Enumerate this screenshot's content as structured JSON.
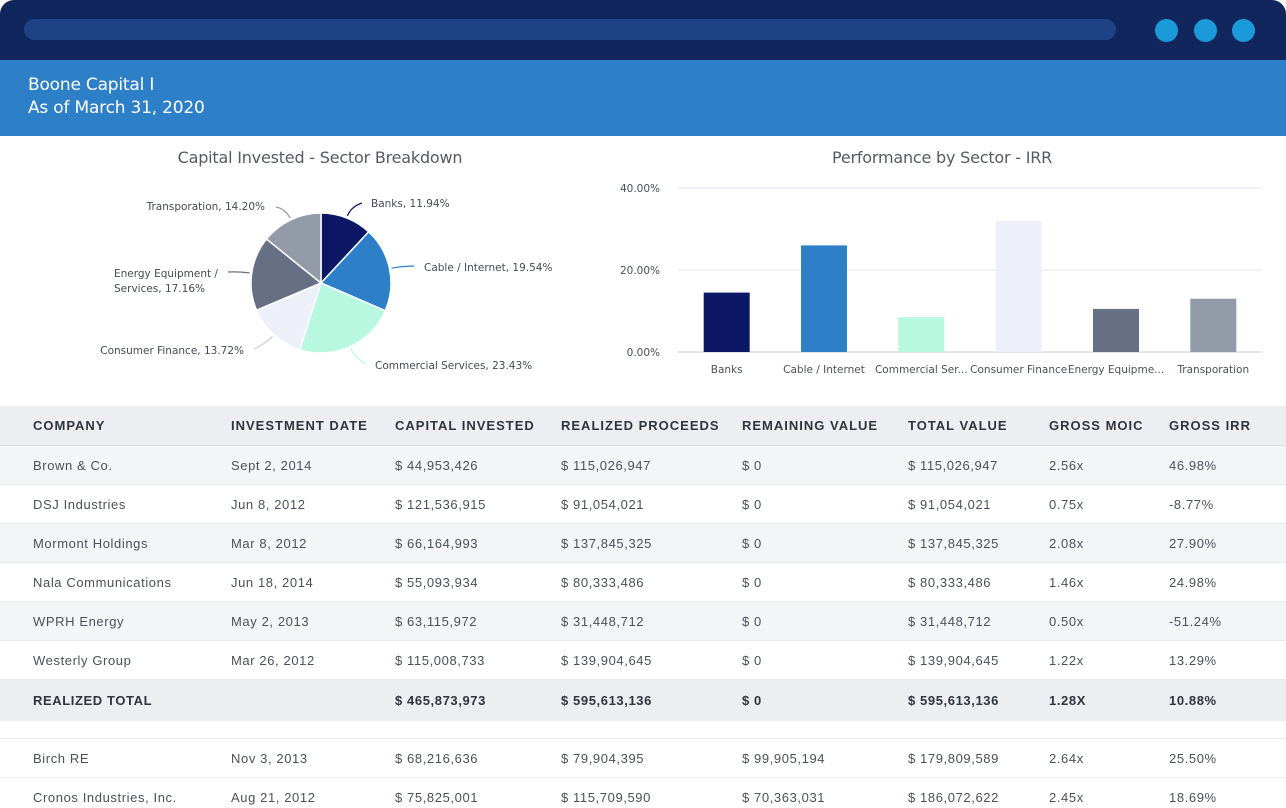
{
  "window": {
    "controls": [
      "dot",
      "dot",
      "dot"
    ]
  },
  "header": {
    "fund_name": "Boone Capital I",
    "as_of": "As of March 31, 2020"
  },
  "charts": {
    "pie_title": "Capital Invested - Sector Breakdown",
    "bar_title": "Performance by Sector - IRR"
  },
  "chart_data": [
    {
      "type": "pie",
      "title": "Capital Invested - Sector Breakdown",
      "slices": [
        {
          "label": "Banks, 11.94%",
          "value": 11.94,
          "color": "#0c1766"
        },
        {
          "label": "Cable / Internet, 19.54%",
          "value": 19.54,
          "color": "#2d7fc7"
        },
        {
          "label": "Commercial Services, 23.43%",
          "value": 23.43,
          "color": "#b8f8e0"
        },
        {
          "label": "Consumer Finance, 13.72%",
          "value": 13.72,
          "color": "#edf0f8"
        },
        {
          "label": "Energy Equipment / Services, 17.16%",
          "value": 17.16,
          "color": "#666f83"
        },
        {
          "label": "Transporation, 14.20%",
          "value": 14.2,
          "color": "#939aa8"
        }
      ]
    },
    {
      "type": "bar",
      "title": "Performance by Sector - IRR",
      "categories": [
        "Banks",
        "Cable / Internet",
        "Commercial Ser...",
        "Consumer Finance",
        "Energy Equipme...",
        "Transporation"
      ],
      "values": [
        14.5,
        26.0,
        8.5,
        32.0,
        10.5,
        13.0
      ],
      "colors": [
        "#0c1766",
        "#2d7fc7",
        "#b8f8e0",
        "#edf0f8",
        "#666f83",
        "#939aa8"
      ],
      "yticks": [
        "0.00%",
        "20.00%",
        "40.00%"
      ],
      "ytick_values": [
        0,
        20,
        40
      ],
      "ylim": [
        0,
        40
      ],
      "grid": true
    }
  ],
  "table": {
    "columns": [
      "COMPANY",
      "INVESTMENT DATE",
      "CAPITAL INVESTED",
      "REALIZED PROCEEDS",
      "REMAINING VALUE",
      "TOTAL VALUE",
      "GROSS MOIC",
      "GROSS IRR"
    ],
    "rows": [
      [
        "Brown & Co.",
        "Sept 2, 2014",
        "$ 44,953,426",
        "$ 115,026,947",
        "$ 0",
        "$ 115,026,947",
        "2.56x",
        "46.98%"
      ],
      [
        "DSJ Industries",
        "Jun 8, 2012",
        "$ 121,536,915",
        "$ 91,054,021",
        "$ 0",
        "$ 91,054,021",
        "0.75x",
        "-8.77%"
      ],
      [
        "Mormont Holdings",
        "Mar 8, 2012",
        "$ 66,164,993",
        "$ 137,845,325",
        "$ 0",
        "$ 137,845,325",
        "2.08x",
        "27.90%"
      ],
      [
        "Nala Communications",
        "Jun 18, 2014",
        "$ 55,093,934",
        "$ 80,333,486",
        "$ 0",
        "$ 80,333,486",
        "1.46x",
        "24.98%"
      ],
      [
        "WPRH Energy",
        "May 2, 2013",
        "$ 63,115,972",
        "$ 31,448,712",
        "$ 0",
        "$ 31,448,712",
        "0.50x",
        "-51.24%"
      ],
      [
        "Westerly Group",
        "Mar 26, 2012",
        "$ 115,008,733",
        "$ 139,904,645",
        "$ 0",
        "$ 139,904,645",
        "1.22x",
        "13.29%"
      ]
    ],
    "total": [
      "REALIZED TOTAL",
      "",
      "$ 465,873,973",
      "$ 595,613,136",
      "$ 0",
      "$ 595,613,136",
      "1.28X",
      "10.88%"
    ],
    "rows2": [
      [
        "Birch RE",
        "Nov 3, 2013",
        "$ 68,216,636",
        "$ 79,904,395",
        "$ 99,905,194",
        "$ 179,809,589",
        "2.64x",
        "25.50%"
      ],
      [
        "Cronos Industries, Inc.",
        "Aug 21, 2012",
        "$ 75,825,001",
        "$ 115,709,590",
        "$ 70,363,031",
        "$ 186,072,622",
        "2.45x",
        "18.69%"
      ]
    ]
  }
}
